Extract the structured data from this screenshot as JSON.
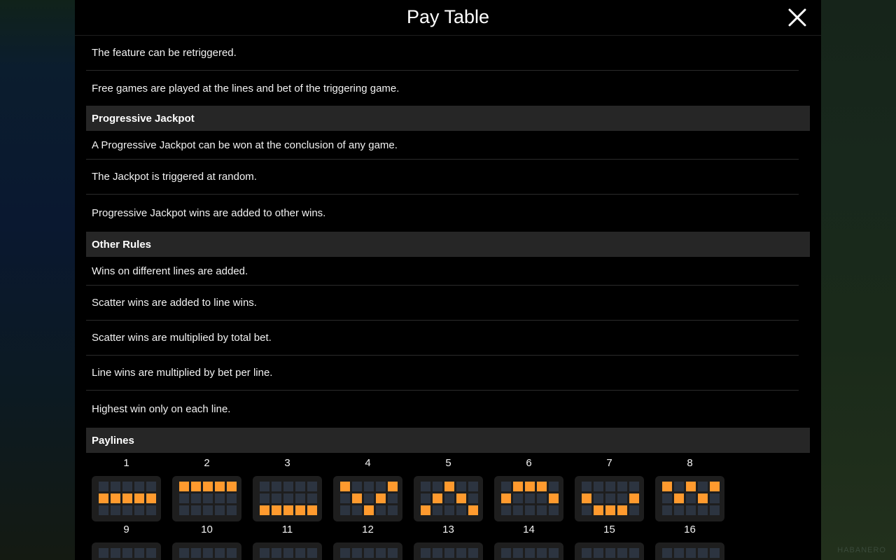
{
  "dialog": {
    "title": "Pay Table"
  },
  "rows_top": [
    "The feature can be retriggered.",
    "Free games are played at the lines and bet of the triggering game."
  ],
  "sections": {
    "jackpot": {
      "title": "Progressive Jackpot",
      "rows": [
        "A Progressive Jackpot can be won at the conclusion of any game.",
        "The Jackpot is triggered at random.",
        "Progressive Jackpot wins are added to other wins."
      ]
    },
    "other": {
      "title": "Other Rules",
      "rows": [
        "Wins on different lines are added.",
        "Scatter wins are added to line wins.",
        "Scatter wins are multiplied by total bet.",
        "Line wins are multiplied by bet per line.",
        "Highest win only on each line."
      ]
    },
    "paylines": {
      "title": "Paylines"
    }
  },
  "paylines": [
    {
      "label": "1",
      "rows": [
        1,
        1,
        1,
        1,
        1
      ]
    },
    {
      "label": "2",
      "rows": [
        0,
        0,
        0,
        0,
        0
      ]
    },
    {
      "label": "3",
      "rows": [
        2,
        2,
        2,
        2,
        2
      ]
    },
    {
      "label": "4",
      "rows": [
        0,
        1,
        2,
        1,
        0
      ]
    },
    {
      "label": "5",
      "rows": [
        2,
        1,
        0,
        1,
        2
      ]
    },
    {
      "label": "6",
      "rows": [
        1,
        0,
        0,
        0,
        1
      ]
    },
    {
      "label": "7",
      "rows": [
        1,
        2,
        2,
        2,
        1
      ]
    },
    {
      "label": "8",
      "rows": [
        0,
        1,
        0,
        1,
        0
      ]
    },
    {
      "label": "9"
    },
    {
      "label": "10"
    },
    {
      "label": "11"
    },
    {
      "label": "12"
    },
    {
      "label": "13"
    },
    {
      "label": "14"
    },
    {
      "label": "15"
    },
    {
      "label": "16"
    }
  ],
  "colors": {
    "active": "#ff9a2e",
    "inactive": "#2c3440"
  },
  "background": {
    "watermark": "HABANERO"
  }
}
